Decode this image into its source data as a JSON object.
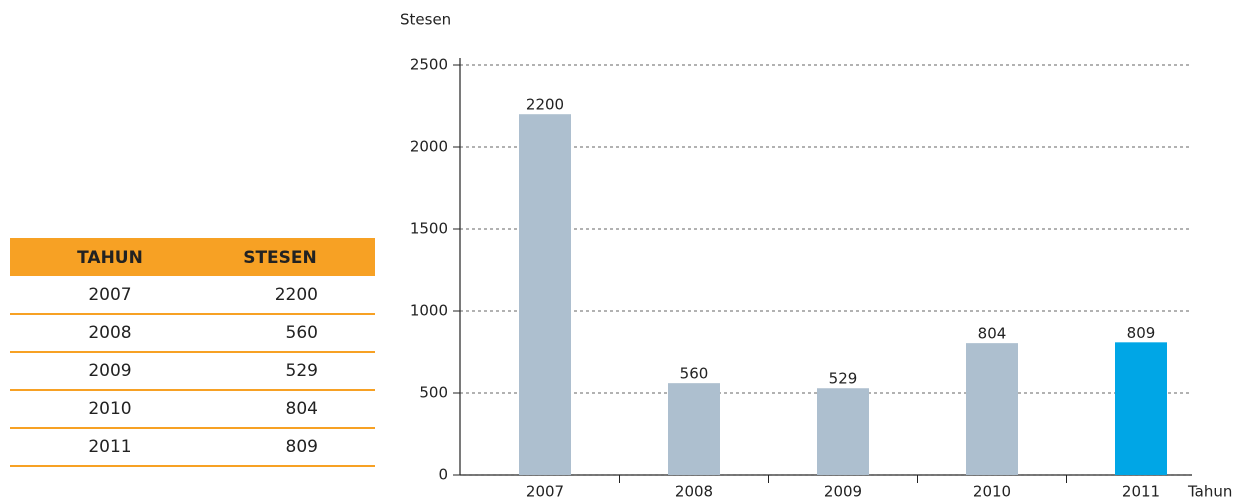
{
  "table": {
    "header": [
      "TAHUN",
      "STESEN"
    ],
    "rows": [
      [
        2007,
        2200
      ],
      [
        2008,
        560
      ],
      [
        2009,
        529
      ],
      [
        2010,
        804
      ],
      [
        2011,
        809
      ]
    ]
  },
  "chart_data": {
    "type": "bar",
    "y_label": "Stesen",
    "x_label": "Tahun",
    "categories": [
      "2007",
      "2008",
      "2009",
      "2010",
      "2011"
    ],
    "values": [
      2200,
      560,
      529,
      804,
      809
    ],
    "colors": [
      "#adbfcf",
      "#adbfcf",
      "#adbfcf",
      "#adbfcf",
      "#00a6e6"
    ],
    "ylim": [
      0,
      2500
    ],
    "yticks": [
      0,
      500,
      1000,
      1500,
      2000,
      2500
    ],
    "grid": true
  }
}
